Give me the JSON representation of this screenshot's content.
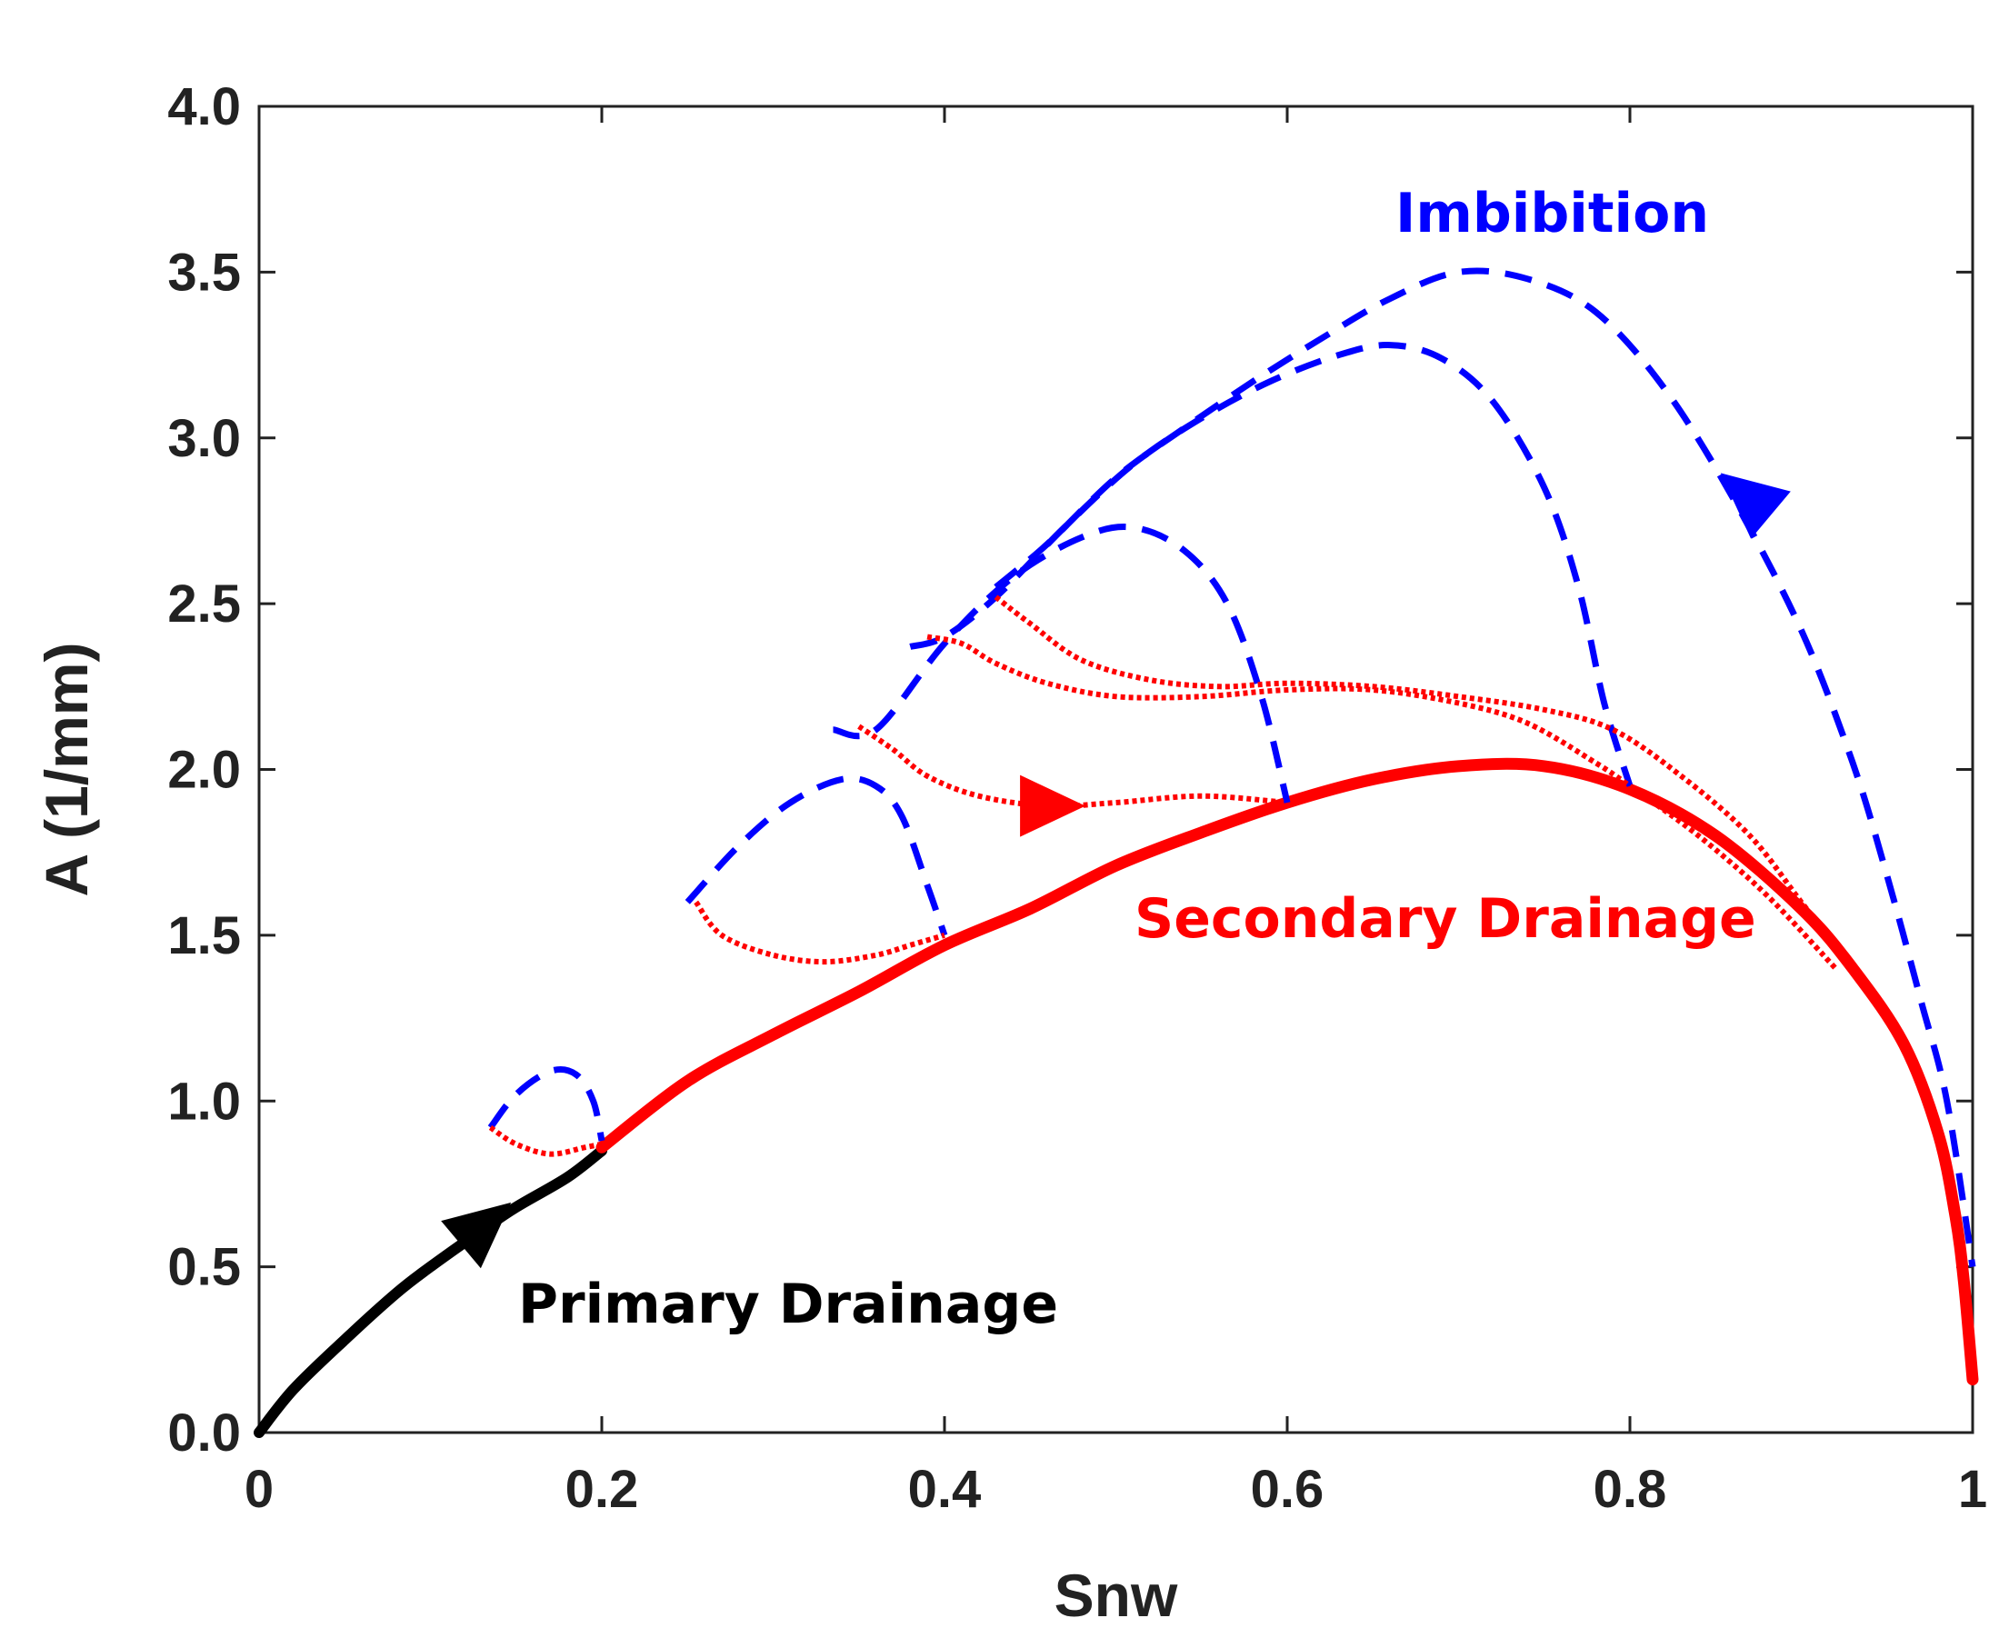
{
  "chart_data": {
    "type": "line",
    "title": "",
    "xlabel": "Snw",
    "ylabel": "A (1/mm)",
    "xlim": [
      0,
      1
    ],
    "ylim": [
      0,
      4
    ],
    "grid": false,
    "x_tick_labels": [
      "0",
      "0.2",
      "0.4",
      "0.6",
      "0.8",
      "1"
    ],
    "x_tick_values": [
      0,
      0.2,
      0.4,
      0.6,
      0.8,
      1
    ],
    "y_tick_labels": [
      "0.0",
      "0.5",
      "1.0",
      "1.5",
      "2.0",
      "2.5",
      "3.0",
      "3.5",
      "4.0"
    ],
    "y_tick_values": [
      0,
      0.5,
      1.0,
      1.5,
      2.0,
      2.5,
      3.0,
      3.5,
      4.0
    ],
    "annotations": {
      "imbibition": "Imbibition",
      "secondary_drainage": "Secondary Drainage",
      "primary_drainage": "Primary Drainage"
    },
    "colors": {
      "primary": "#000000",
      "secondary": "#ff0000",
      "imbibition": "#0000ff"
    },
    "series": [
      {
        "name": "Primary Drainage",
        "style": "solid",
        "color": "#000000",
        "x": [
          0,
          0.02,
          0.05,
          0.08,
          0.1,
          0.13,
          0.15,
          0.18,
          0.2
        ],
        "y": [
          0,
          0.13,
          0.28,
          0.42,
          0.5,
          0.61,
          0.68,
          0.77,
          0.85
        ]
      },
      {
        "name": "Secondary Drainage main",
        "style": "solid-thick",
        "color": "#ff0000",
        "x": [
          0.2,
          0.25,
          0.3,
          0.35,
          0.4,
          0.45,
          0.5,
          0.55,
          0.6,
          0.65,
          0.7,
          0.75,
          0.8,
          0.85,
          0.9,
          0.93,
          0.96,
          0.98,
          0.99,
          0.995,
          1.0
        ],
        "y": [
          0.86,
          1.06,
          1.2,
          1.33,
          1.47,
          1.58,
          1.71,
          1.81,
          1.9,
          1.97,
          2.01,
          2.01,
          1.94,
          1.8,
          1.58,
          1.4,
          1.17,
          0.9,
          0.65,
          0.45,
          0.16
        ]
      },
      {
        "name": "Imbibition 1",
        "style": "dashed",
        "color": "#0000ff",
        "x": [
          0.135,
          0.15,
          0.17,
          0.185,
          0.195,
          0.2
        ],
        "y": [
          0.92,
          1.02,
          1.09,
          1.08,
          1.0,
          0.88
        ]
      },
      {
        "name": "Imbibition 2",
        "style": "dashed",
        "color": "#0000ff",
        "x": [
          0.25,
          0.28,
          0.31,
          0.34,
          0.36,
          0.375,
          0.39,
          0.4
        ],
        "y": [
          1.6,
          1.77,
          1.9,
          1.97,
          1.95,
          1.86,
          1.65,
          1.5
        ]
      },
      {
        "name": "Imbibition 3",
        "style": "dashed",
        "color": "#0000ff",
        "x": [
          0.335,
          0.36,
          0.4,
          0.44,
          0.48,
          0.51,
          0.54,
          0.565,
          0.585,
          0.6
        ],
        "y": [
          2.12,
          2.12,
          2.38,
          2.58,
          2.7,
          2.73,
          2.66,
          2.5,
          2.22,
          1.9
        ]
      },
      {
        "name": "Imbibition 4",
        "style": "dashed",
        "color": "#0000ff",
        "x": [
          0.38,
          0.4,
          0.43,
          0.47,
          0.51,
          0.55,
          0.59,
          0.63,
          0.66,
          0.69,
          0.72,
          0.75,
          0.77,
          0.785,
          0.8
        ],
        "y": [
          2.37,
          2.4,
          2.52,
          2.73,
          2.92,
          3.06,
          3.17,
          3.25,
          3.28,
          3.24,
          3.11,
          2.85,
          2.55,
          2.2,
          1.95
        ]
      },
      {
        "name": "Imbibition 5",
        "style": "dashed",
        "color": "#0000ff",
        "x": [
          0.43,
          0.46,
          0.5,
          0.54,
          0.58,
          0.62,
          0.66,
          0.7,
          0.74,
          0.78,
          0.82,
          0.86,
          0.9,
          0.93,
          0.95,
          0.97,
          0.985,
          1.0
        ],
        "y": [
          2.55,
          2.68,
          2.88,
          3.03,
          3.17,
          3.3,
          3.42,
          3.5,
          3.48,
          3.38,
          3.15,
          2.82,
          2.42,
          2.02,
          1.68,
          1.3,
          1.0,
          0.5
        ]
      },
      {
        "name": "Secondary Drainage 1",
        "style": "dotted",
        "color": "#ff0000",
        "x": [
          0.135,
          0.15,
          0.17,
          0.19,
          0.2
        ],
        "y": [
          0.92,
          0.87,
          0.84,
          0.86,
          0.87
        ]
      },
      {
        "name": "Secondary Drainage 2",
        "style": "dotted",
        "color": "#ff0000",
        "x": [
          0.255,
          0.27,
          0.3,
          0.33,
          0.36,
          0.38,
          0.4
        ],
        "y": [
          1.6,
          1.5,
          1.44,
          1.42,
          1.44,
          1.47,
          1.5
        ]
      },
      {
        "name": "Secondary Drainage 3",
        "style": "dotted",
        "color": "#ff0000",
        "x": [
          0.35,
          0.37,
          0.39,
          0.42,
          0.46,
          0.5,
          0.55,
          0.6
        ],
        "y": [
          2.13,
          2.06,
          1.98,
          1.92,
          1.89,
          1.9,
          1.92,
          1.9
        ]
      },
      {
        "name": "Secondary Drainage 4",
        "style": "dotted",
        "color": "#ff0000",
        "x": [
          0.39,
          0.41,
          0.43,
          0.46,
          0.5,
          0.55,
          0.6,
          0.65,
          0.7,
          0.74,
          0.78,
          0.8,
          0.84,
          0.88,
          0.92
        ],
        "y": [
          2.4,
          2.38,
          2.32,
          2.26,
          2.22,
          2.22,
          2.24,
          2.24,
          2.2,
          2.14,
          2.02,
          1.95,
          1.8,
          1.62,
          1.4
        ]
      },
      {
        "name": "Secondary Drainage 5",
        "style": "dotted",
        "color": "#ff0000",
        "x": [
          0.43,
          0.45,
          0.48,
          0.52,
          0.56,
          0.6,
          0.65,
          0.7,
          0.75,
          0.79,
          0.83,
          0.87,
          0.9,
          0.93
        ],
        "y": [
          2.52,
          2.44,
          2.33,
          2.27,
          2.25,
          2.26,
          2.25,
          2.22,
          2.18,
          2.12,
          1.98,
          1.8,
          1.6,
          1.4
        ]
      }
    ],
    "arrows": [
      {
        "name": "Primary Drainage direction",
        "color": "#000000",
        "x": 0.13,
        "y": 0.62,
        "direction_deg": -40
      },
      {
        "name": "Secondary Drainage direction",
        "color": "#ff0000",
        "x": 0.46,
        "y": 1.89,
        "direction_deg": 0
      },
      {
        "name": "Imbibition direction",
        "color": "#0000ff",
        "x": 0.87,
        "y": 2.82,
        "direction_deg": -140
      }
    ]
  }
}
